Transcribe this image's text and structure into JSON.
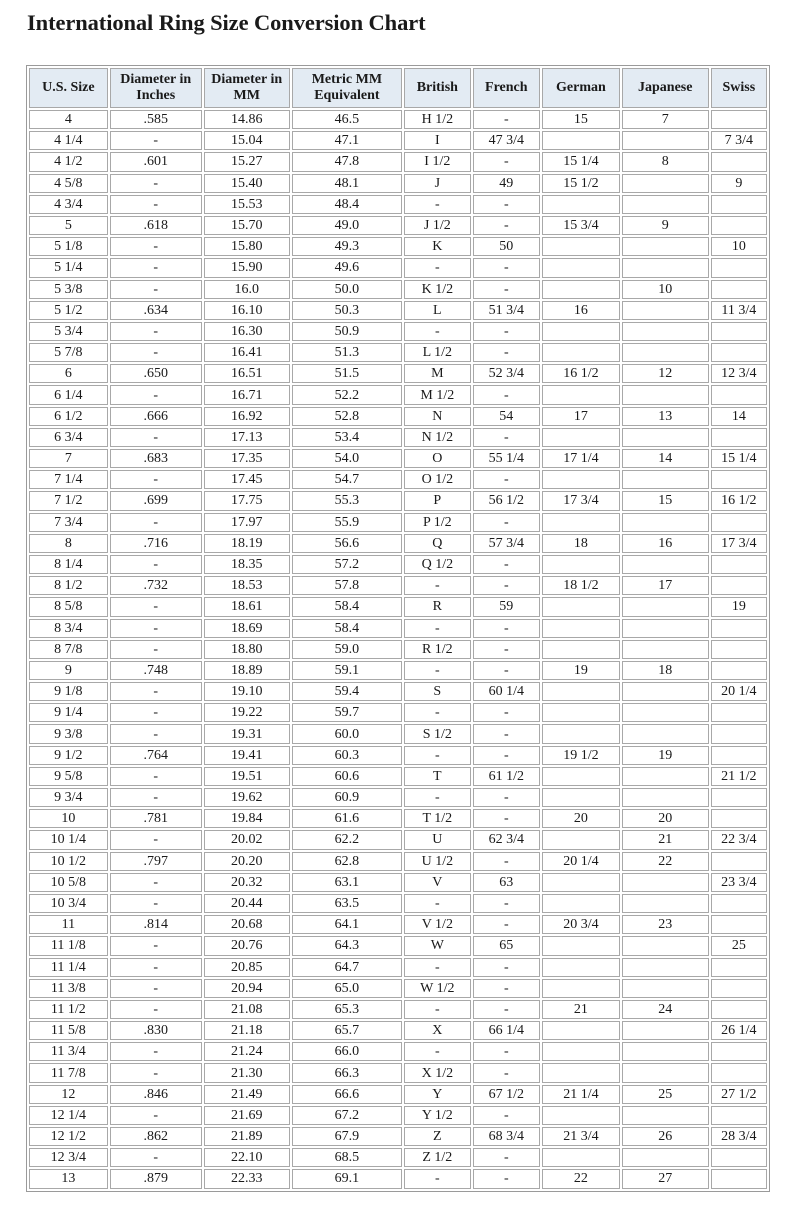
{
  "title": "International Ring Size Conversion Chart",
  "columns": [
    "U.S. Size",
    "Diameter in Inches",
    "Diameter in MM",
    "Metric MM Equivalent",
    "British",
    "French",
    "German",
    "Japanese",
    "Swiss"
  ],
  "rows": [
    [
      "4",
      ".585",
      "14.86",
      "46.5",
      "H 1/2",
      "-",
      "15",
      "7",
      ""
    ],
    [
      "4 1/4",
      "-",
      "15.04",
      "47.1",
      "I",
      "47 3/4",
      "",
      "",
      "7 3/4"
    ],
    [
      "4 1/2",
      ".601",
      "15.27",
      "47.8",
      "I 1/2",
      "-",
      "15 1/4",
      "8",
      ""
    ],
    [
      "4 5/8",
      "-",
      "15.40",
      "48.1",
      "J",
      "49",
      "15 1/2",
      "",
      "9"
    ],
    [
      "4 3/4",
      "-",
      "15.53",
      "48.4",
      "-",
      "-",
      "",
      "",
      ""
    ],
    [
      "5",
      ".618",
      "15.70",
      "49.0",
      "J 1/2",
      "-",
      "15 3/4",
      "9",
      ""
    ],
    [
      "5 1/8",
      "-",
      "15.80",
      "49.3",
      "K",
      "50",
      "",
      "",
      "10"
    ],
    [
      "5 1/4",
      "-",
      "15.90",
      "49.6",
      "-",
      "-",
      "",
      "",
      ""
    ],
    [
      "5 3/8",
      "-",
      "16.0",
      "50.0",
      "K 1/2",
      "-",
      "",
      "10",
      ""
    ],
    [
      "5 1/2",
      ".634",
      "16.10",
      "50.3",
      "L",
      "51 3/4",
      "16",
      "",
      "11 3/4"
    ],
    [
      "5 3/4",
      "-",
      "16.30",
      "50.9",
      "-",
      "-",
      "",
      "",
      ""
    ],
    [
      "5 7/8",
      "-",
      "16.41",
      "51.3",
      "L 1/2",
      "-",
      "",
      "",
      ""
    ],
    [
      "6",
      ".650",
      "16.51",
      "51.5",
      "M",
      "52 3/4",
      "16 1/2",
      "12",
      "12 3/4"
    ],
    [
      "6 1/4",
      "-",
      "16.71",
      "52.2",
      "M 1/2",
      "-",
      "",
      "",
      ""
    ],
    [
      "6 1/2",
      ".666",
      "16.92",
      "52.8",
      "N",
      "54",
      "17",
      "13",
      "14"
    ],
    [
      "6 3/4",
      "-",
      "17.13",
      "53.4",
      "N 1/2",
      "-",
      "",
      "",
      ""
    ],
    [
      "7",
      ".683",
      "17.35",
      "54.0",
      "O",
      "55 1/4",
      "17 1/4",
      "14",
      "15 1/4"
    ],
    [
      "7 1/4",
      "-",
      "17.45",
      "54.7",
      "O 1/2",
      "-",
      "",
      "",
      ""
    ],
    [
      "7 1/2",
      ".699",
      "17.75",
      "55.3",
      "P",
      "56 1/2",
      "17 3/4",
      "15",
      "16 1/2"
    ],
    [
      "7 3/4",
      "-",
      "17.97",
      "55.9",
      "P 1/2",
      "-",
      "",
      "",
      ""
    ],
    [
      "8",
      ".716",
      "18.19",
      "56.6",
      "Q",
      "57 3/4",
      "18",
      "16",
      "17 3/4"
    ],
    [
      "8 1/4",
      "-",
      "18.35",
      "57.2",
      "Q 1/2",
      "-",
      "",
      "",
      ""
    ],
    [
      "8 1/2",
      ".732",
      "18.53",
      "57.8",
      "-",
      "-",
      "18 1/2",
      "17",
      ""
    ],
    [
      "8 5/8",
      "-",
      "18.61",
      "58.4",
      "R",
      "59",
      "",
      "",
      "19"
    ],
    [
      "8 3/4",
      "-",
      "18.69",
      "58.4",
      "-",
      "-",
      "",
      "",
      ""
    ],
    [
      "8 7/8",
      "-",
      "18.80",
      "59.0",
      "R 1/2",
      "-",
      "",
      "",
      ""
    ],
    [
      "9",
      ".748",
      "18.89",
      "59.1",
      "-",
      "-",
      "19",
      "18",
      ""
    ],
    [
      "9 1/8",
      "-",
      "19.10",
      "59.4",
      "S",
      "60 1/4",
      "",
      "",
      "20 1/4"
    ],
    [
      "9 1/4",
      "-",
      "19.22",
      "59.7",
      "-",
      "-",
      "",
      "",
      ""
    ],
    [
      "9 3/8",
      "-",
      "19.31",
      "60.0",
      "S 1/2",
      "-",
      "",
      "",
      ""
    ],
    [
      "9 1/2",
      ".764",
      "19.41",
      "60.3",
      "-",
      "-",
      "19 1/2",
      "19",
      ""
    ],
    [
      "9 5/8",
      "-",
      "19.51",
      "60.6",
      "T",
      "61 1/2",
      "",
      "",
      "21 1/2"
    ],
    [
      "9 3/4",
      "-",
      "19.62",
      "60.9",
      "-",
      "-",
      "",
      "",
      ""
    ],
    [
      "10",
      ".781",
      "19.84",
      "61.6",
      "T 1/2",
      "-",
      "20",
      "20",
      ""
    ],
    [
      "10 1/4",
      "-",
      "20.02",
      "62.2",
      "U",
      "62 3/4",
      "",
      "21",
      "22 3/4"
    ],
    [
      "10 1/2",
      ".797",
      "20.20",
      "62.8",
      "U 1/2",
      "-",
      "20 1/4",
      "22",
      ""
    ],
    [
      "10 5/8",
      "-",
      "20.32",
      "63.1",
      "V",
      "63",
      "",
      "",
      "23 3/4"
    ],
    [
      "10 3/4",
      "-",
      "20.44",
      "63.5",
      "-",
      "-",
      "",
      "",
      ""
    ],
    [
      "11",
      ".814",
      "20.68",
      "64.1",
      "V 1/2",
      "-",
      "20 3/4",
      "23",
      ""
    ],
    [
      "11 1/8",
      "-",
      "20.76",
      "64.3",
      "W",
      "65",
      "",
      "",
      "25"
    ],
    [
      "11 1/4",
      "-",
      "20.85",
      "64.7",
      "-",
      "-",
      "",
      "",
      ""
    ],
    [
      "11 3/8",
      "-",
      "20.94",
      "65.0",
      "W 1/2",
      "-",
      "",
      "",
      ""
    ],
    [
      "11 1/2",
      "-",
      "21.08",
      "65.3",
      "-",
      "-",
      "21",
      "24",
      ""
    ],
    [
      "11 5/8",
      ".830",
      "21.18",
      "65.7",
      "X",
      "66 1/4",
      "",
      "",
      "26 1/4"
    ],
    [
      "11 3/4",
      "-",
      "21.24",
      "66.0",
      "-",
      "-",
      "",
      "",
      ""
    ],
    [
      "11 7/8",
      "-",
      "21.30",
      "66.3",
      "X 1/2",
      "-",
      "",
      "",
      ""
    ],
    [
      "12",
      ".846",
      "21.49",
      "66.6",
      "Y",
      "67 1/2",
      "21 1/4",
      "25",
      "27 1/2"
    ],
    [
      "12 1/4",
      "-",
      "21.69",
      "67.2",
      "Y 1/2",
      "-",
      "",
      "",
      ""
    ],
    [
      "12 1/2",
      ".862",
      "21.89",
      "67.9",
      "Z",
      "68 3/4",
      "21 3/4",
      "26",
      "28 3/4"
    ],
    [
      "12 3/4",
      "-",
      "22.10",
      "68.5",
      "Z 1/2",
      "-",
      "",
      "",
      ""
    ],
    [
      "13",
      ".879",
      "22.33",
      "69.1",
      "-",
      "-",
      "22",
      "27",
      ""
    ]
  ]
}
